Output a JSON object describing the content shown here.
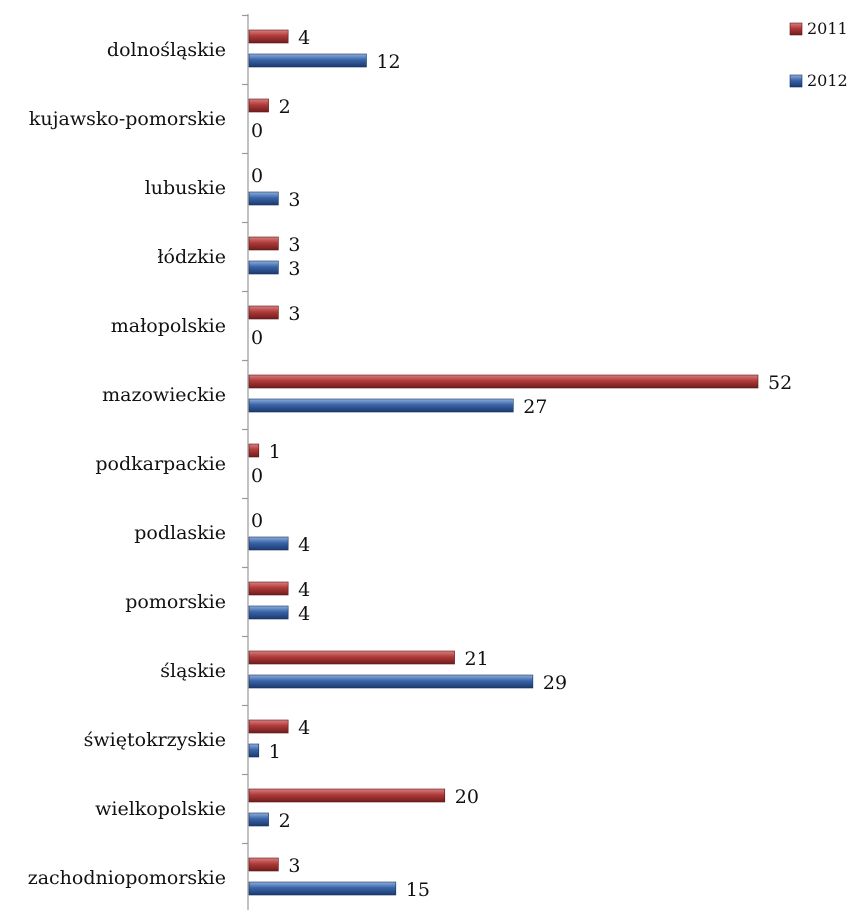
{
  "chart_data": {
    "type": "bar",
    "orientation": "horizontal",
    "categories": [
      "dolnośląskie",
      "kujawsko-pomorskie",
      "lubuskie",
      "łódzkie",
      "małopolskie",
      "mazowieckie",
      "podkarpackie",
      "podlaskie",
      "pomorskie",
      "śląskie",
      "świętokrzyskie",
      "wielkopolskie",
      "zachodniopomorskie"
    ],
    "series": [
      {
        "name": "2011",
        "color": "#b03a3a",
        "values": [
          4,
          2,
          0,
          3,
          3,
          52,
          1,
          0,
          4,
          21,
          4,
          20,
          3
        ]
      },
      {
        "name": "2012",
        "color": "#3a64a8",
        "values": [
          12,
          0,
          3,
          3,
          0,
          27,
          0,
          4,
          4,
          29,
          1,
          2,
          15
        ]
      }
    ],
    "title": "",
    "xlabel": "",
    "ylabel": "",
    "xlim": [
      0,
      56
    ],
    "grid": false,
    "legend": "top-right",
    "data_labels": true
  }
}
